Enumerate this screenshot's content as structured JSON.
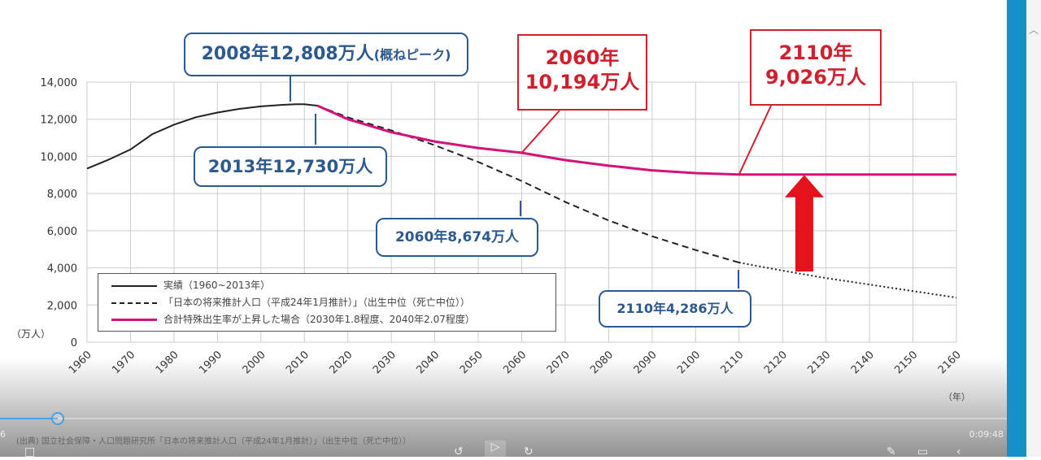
{
  "chart_data": {
    "type": "line",
    "ylabel": "（万人）",
    "xlabel": "（年）",
    "ylim": [
      0,
      14000
    ],
    "xlim": [
      1960,
      2160
    ],
    "grid": true,
    "yticks": [
      "0",
      "2,000",
      "4,000",
      "6,000",
      "8,000",
      "10,000",
      "12,000",
      "14,000"
    ],
    "xticks": [
      "1960",
      "1970",
      "1980",
      "1990",
      "2000",
      "2010",
      "2020",
      "2030",
      "2040",
      "2050",
      "2060",
      "2070",
      "2080",
      "2090",
      "2100",
      "2110",
      "2120",
      "2130",
      "2140",
      "2150",
      "2160"
    ],
    "series": [
      {
        "name": "実績（1960~2013年）",
        "style": "solid",
        "color": "#222222",
        "x": [
          1960,
          1965,
          1970,
          1975,
          1980,
          1985,
          1990,
          1995,
          2000,
          2005,
          2008,
          2010,
          2013
        ],
        "y": [
          9342,
          9828,
          10372,
          11194,
          11706,
          12105,
          12361,
          12557,
          12693,
          12777,
          12808,
          12806,
          12730
        ]
      },
      {
        "name": "「日本の将来推計人口（平成24年1月推計）」（出生中位（死亡中位））",
        "style": "dashed",
        "color": "#222222",
        "x": [
          2013,
          2020,
          2030,
          2040,
          2050,
          2060,
          2070,
          2080,
          2090,
          2100,
          2110
        ],
        "y": [
          12730,
          12100,
          11400,
          10600,
          9700,
          8674,
          7550,
          6550,
          5700,
          4959,
          4286
        ]
      },
      {
        "name": "",
        "style": "dotted",
        "color": "#222222",
        "x": [
          2110,
          2120,
          2130,
          2140,
          2150,
          2160
        ],
        "y": [
          4286,
          3850,
          3450,
          3100,
          2750,
          2400
        ]
      },
      {
        "name": "合計特殊出生率が上昇した場合（2030年1.8程度、2040年2.07程度）",
        "style": "solid",
        "color": "#d4127a",
        "x": [
          2013,
          2020,
          2030,
          2040,
          2050,
          2060,
          2070,
          2080,
          2090,
          2100,
          2110,
          2120,
          2130,
          2140,
          2150,
          2160
        ],
        "y": [
          12730,
          12000,
          11300,
          10800,
          10450,
          10194,
          9800,
          9500,
          9250,
          9100,
          9026,
          9026,
          9026,
          9026,
          9026,
          9026
        ]
      }
    ],
    "annotations": {
      "peak": "2008年12,808万人",
      "peak_note": "(概ねピーク)",
      "a2013": "2013年12,730万人",
      "a2060low": "2060年8,674万人",
      "a2110low": "2110年4,286万人",
      "a2060hi_year": "2060年",
      "a2060hi_val": "10,194万人",
      "a2110hi_year": "2110年",
      "a2110hi_val": "9,026万人"
    },
    "arrow_color": "#e3121b"
  },
  "player": {
    "time_left": "6",
    "time_total": "0:09:48",
    "progress": 0.057,
    "source_caption": "(出典) 国立社会保障・人口問題研究所「日本の将来推計人口（平成24年1月推計）」（出生中位（死亡中位））"
  }
}
